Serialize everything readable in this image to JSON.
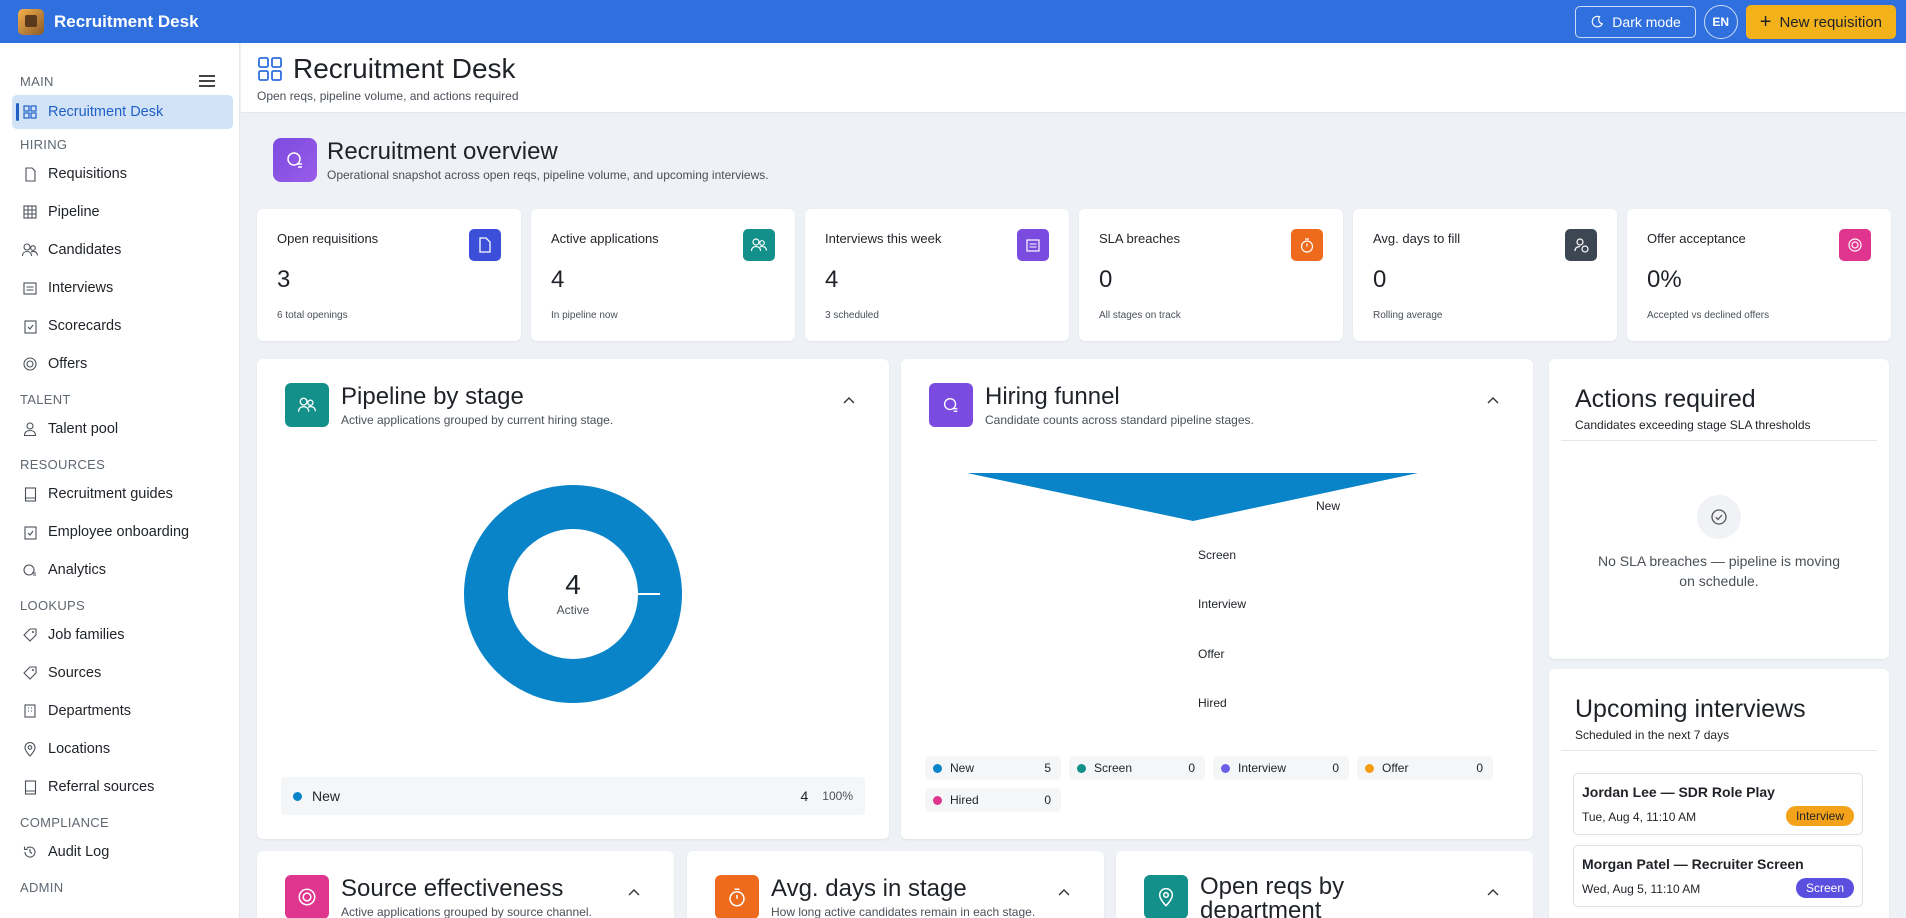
{
  "app": {
    "title": "Recruitment Desk"
  },
  "topbar": {
    "dark_mode_label": "Dark mode",
    "lang_label": "EN",
    "new_req_label": "New requisition"
  },
  "sidebar": {
    "sections": [
      {
        "label": "MAIN",
        "items": [
          {
            "label": "Recruitment Desk",
            "icon": "grid-icon",
            "active": true
          }
        ]
      },
      {
        "label": "HIRING",
        "items": [
          {
            "label": "Requisitions",
            "icon": "file-icon"
          },
          {
            "label": "Pipeline",
            "icon": "table-icon"
          },
          {
            "label": "Candidates",
            "icon": "people-icon"
          },
          {
            "label": "Interviews",
            "icon": "calendar-list-icon"
          },
          {
            "label": "Scorecards",
            "icon": "clipboard-check-icon"
          },
          {
            "label": "Offers",
            "icon": "target-icon"
          }
        ]
      },
      {
        "label": "TALENT",
        "items": [
          {
            "label": "Talent pool",
            "icon": "person-icon"
          }
        ]
      },
      {
        "label": "RESOURCES",
        "items": [
          {
            "label": "Recruitment guides",
            "icon": "book-icon"
          },
          {
            "label": "Employee onboarding",
            "icon": "clipboard-icon"
          },
          {
            "label": "Analytics",
            "icon": "analytics-icon"
          }
        ]
      },
      {
        "label": "LOOKUPS",
        "items": [
          {
            "label": "Job families",
            "icon": "tag-icon"
          },
          {
            "label": "Sources",
            "icon": "tag-icon"
          },
          {
            "label": "Departments",
            "icon": "building-icon"
          },
          {
            "label": "Locations",
            "icon": "pin-icon"
          },
          {
            "label": "Referral sources",
            "icon": "book-icon"
          }
        ]
      },
      {
        "label": "COMPLIANCE",
        "items": [
          {
            "label": "Audit Log",
            "icon": "history-icon"
          }
        ]
      },
      {
        "label": "ADMIN",
        "items": []
      }
    ]
  },
  "page": {
    "title": "Recruitment Desk",
    "subtitle": "Open reqs, pipeline volume, and actions required"
  },
  "overview": {
    "title": "Recruitment overview",
    "subtitle": "Operational snapshot across open reqs, pipeline volume, and upcoming interviews."
  },
  "kpis": [
    {
      "label": "Open requisitions",
      "value": "3",
      "note": "6 total openings",
      "color": "#3b4fd8",
      "icon": "document-icon"
    },
    {
      "label": "Active applications",
      "value": "4",
      "note": "In pipeline now",
      "color": "#13908a",
      "icon": "people-icon"
    },
    {
      "label": "Interviews this week",
      "value": "4",
      "note": "3 scheduled",
      "color": "#7b4be0",
      "icon": "calendar-icon"
    },
    {
      "label": "SLA breaches",
      "value": "0",
      "note": "All stages on track",
      "color": "#ee6a1c",
      "icon": "timer-icon"
    },
    {
      "label": "Avg. days to fill",
      "value": "0",
      "note": "Rolling average",
      "color": "#3d4753",
      "icon": "person-clock-icon"
    },
    {
      "label": "Offer acceptance",
      "value": "0%",
      "note": "Accepted vs declined offers",
      "color": "#e0358f",
      "icon": "target-icon"
    }
  ],
  "pipeline": {
    "title": "Pipeline by stage",
    "subtitle": "Active applications grouped by current hiring stage.",
    "center_value": "4",
    "center_label": "Active",
    "legend": [
      {
        "name": "New",
        "count": "4",
        "pct": "100%",
        "color": "#0a84c9"
      }
    ]
  },
  "funnel": {
    "title": "Hiring funnel",
    "subtitle": "Candidate counts across standard pipeline stages.",
    "stages": [
      {
        "name": "New",
        "count": 5,
        "color": "#0a84c9"
      },
      {
        "name": "Screen",
        "count": 0,
        "color": "#13908a"
      },
      {
        "name": "Interview",
        "count": 0,
        "color": "#6b5fe8"
      },
      {
        "name": "Offer",
        "count": 0,
        "color": "#f39c12"
      },
      {
        "name": "Hired",
        "count": 0,
        "color": "#e0358f"
      }
    ]
  },
  "actions": {
    "title": "Actions required",
    "subtitle": "Candidates exceeding stage SLA thresholds",
    "empty_text": "No SLA breaches — pipeline is moving on schedule."
  },
  "upcoming": {
    "title": "Upcoming interviews",
    "subtitle": "Scheduled in the next 7 days",
    "items": [
      {
        "name": "Jordan Lee — SDR Role Play",
        "time": "Tue, Aug 4, 11:10 AM",
        "badge": "Interview",
        "badge_color": "#f4a21a",
        "badge_text_color": "#1f2328"
      },
      {
        "name": "Morgan Patel — Recruiter Screen",
        "time": "Wed, Aug 5, 11:10 AM",
        "badge": "Screen",
        "badge_color": "#5b4fe0",
        "badge_text_color": "#ffffff"
      }
    ]
  },
  "bottom_cards": [
    {
      "title": "Source effectiveness",
      "subtitle": "Active applications grouped by source channel.",
      "color": "#e0358f",
      "icon": "target-icon"
    },
    {
      "title": "Avg. days in stage",
      "subtitle": "How long active candidates remain in each stage.",
      "color": "#ee6a1c",
      "icon": "timer-icon"
    },
    {
      "title": "Open reqs by department",
      "subtitle": "",
      "color": "#13908a",
      "icon": "pin-icon"
    }
  ]
}
